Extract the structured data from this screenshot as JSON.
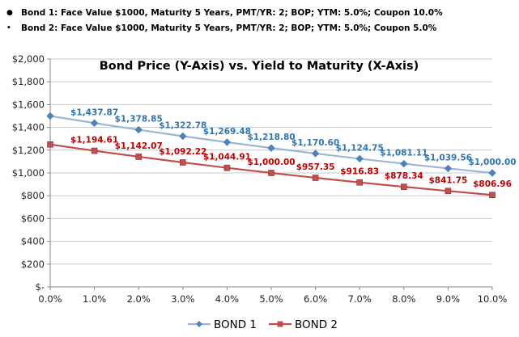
{
  "notes": [
    {
      "bullet": "●",
      "text": "Bond 1: Face Value $1000, Maturity 5 Years, PMT/YR: 2; BOP; YTM: 5.0%; Coupon 10.0%"
    },
    {
      "bullet": "•",
      "text": "Bond 2: Face Value $1000, Maturity 5 Years, PMT/YR: 2; BOP; YTM: 5.0%; Coupon 5.0%"
    }
  ],
  "colors": {
    "bond1": "#9bb7d4",
    "bond1_marker": "#4f81bd",
    "bond1_label": "#2e75b6",
    "bond2": "#c0504d",
    "bond2_marker": "#c0504d",
    "bond2_label": "#c00000"
  },
  "chart_data": {
    "type": "line",
    "title": "Bond Price (Y-Axis) vs. Yield to Maturity (X-Axis)",
    "categories": [
      "0.0%",
      "1.0%",
      "2.0%",
      "3.0%",
      "4.0%",
      "5.0%",
      "6.0%",
      "7.0%",
      "8.0%",
      "9.0%",
      "10.0%"
    ],
    "ylim": [
      0,
      2000
    ],
    "yticks": [
      0,
      200,
      400,
      600,
      800,
      1000,
      1200,
      1400,
      1600,
      1800,
      2000
    ],
    "ytick_labels": [
      "$-",
      "$200",
      "$400",
      "$600",
      "$800",
      "$1,000",
      "$1,200",
      "$1,400",
      "$1,600",
      "$1,800",
      "$2,000"
    ],
    "grid": true,
    "legend": "bottom",
    "series": [
      {
        "name": "BOND 1",
        "values": [
          1500,
          1437.87,
          1378.85,
          1322.78,
          1269.48,
          1218.8,
          1170.6,
          1124.75,
          1081.11,
          1039.56,
          1000.0
        ],
        "labels": [
          "",
          "$1,437.87",
          "$1,378.85",
          "$1,322.78",
          "$1,269.48",
          "$1,218.80",
          "$1,170.60",
          "$1,124.75",
          "$1,081.11",
          "$1,039.56",
          "$1,000.00"
        ]
      },
      {
        "name": "BOND 2",
        "values": [
          1250,
          1194.61,
          1142.07,
          1092.22,
          1044.91,
          1000.0,
          957.35,
          916.83,
          878.34,
          841.75,
          806.96
        ],
        "labels": [
          "",
          "$1,194.61",
          "$1,142.07",
          "$1,092.22",
          "$1,044.91",
          "$1,000.00",
          "$957.35",
          "$916.83",
          "$878.34",
          "$841.75",
          "$806.96"
        ]
      }
    ]
  }
}
